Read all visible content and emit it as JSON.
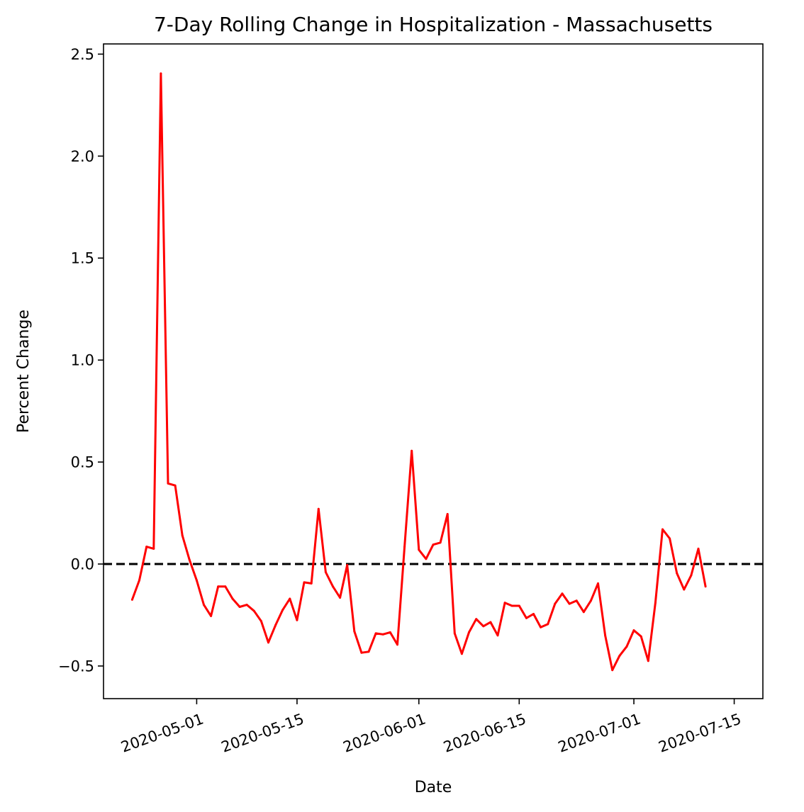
{
  "chart_data": {
    "type": "line",
    "title": "7-Day Rolling Change in Hospitalization - Massachusetts",
    "xlabel": "Date",
    "ylabel": "Percent Change",
    "x_start": "2020-04-22",
    "x_step_days": 1,
    "xlim": [
      "2020-04-18",
      "2020-07-19"
    ],
    "ylim": [
      -0.66,
      2.55
    ],
    "x_ticks": [
      "2020-05-01",
      "2020-05-15",
      "2020-06-01",
      "2020-06-15",
      "2020-07-01",
      "2020-07-15"
    ],
    "y_ticks": [
      -0.5,
      0.0,
      0.5,
      1.0,
      1.5,
      2.0,
      2.5
    ],
    "y_tick_labels": [
      "−0.5",
      "0.0",
      "0.5",
      "1.0",
      "1.5",
      "2.0",
      "2.5"
    ],
    "reference_line": {
      "y": 0.0,
      "style": "dashed",
      "color": "#000000"
    },
    "grid": false,
    "legend": "none",
    "series": [
      {
        "color": "#ff0000",
        "values": [
          -0.175,
          -0.08,
          0.085,
          0.075,
          2.405,
          0.395,
          0.385,
          0.14,
          0.02,
          -0.08,
          -0.2,
          -0.255,
          -0.11,
          -0.11,
          -0.17,
          -0.21,
          -0.2,
          -0.23,
          -0.28,
          -0.385,
          -0.3,
          -0.225,
          -0.17,
          -0.275,
          -0.09,
          -0.095,
          0.27,
          -0.04,
          -0.11,
          -0.165,
          -0.005,
          -0.33,
          -0.435,
          -0.43,
          -0.34,
          -0.345,
          -0.335,
          -0.395,
          0.085,
          0.555,
          0.07,
          0.025,
          0.095,
          0.105,
          0.245,
          -0.34,
          -0.44,
          -0.335,
          -0.27,
          -0.305,
          -0.285,
          -0.35,
          -0.19,
          -0.205,
          -0.205,
          -0.265,
          -0.245,
          -0.31,
          -0.295,
          -0.195,
          -0.145,
          -0.195,
          -0.18,
          -0.235,
          -0.18,
          -0.095,
          -0.35,
          -0.52,
          -0.45,
          -0.405,
          -0.325,
          -0.355,
          -0.475,
          -0.19,
          0.17,
          0.125,
          -0.045,
          -0.125,
          -0.055,
          0.075,
          -0.11
        ]
      }
    ]
  }
}
